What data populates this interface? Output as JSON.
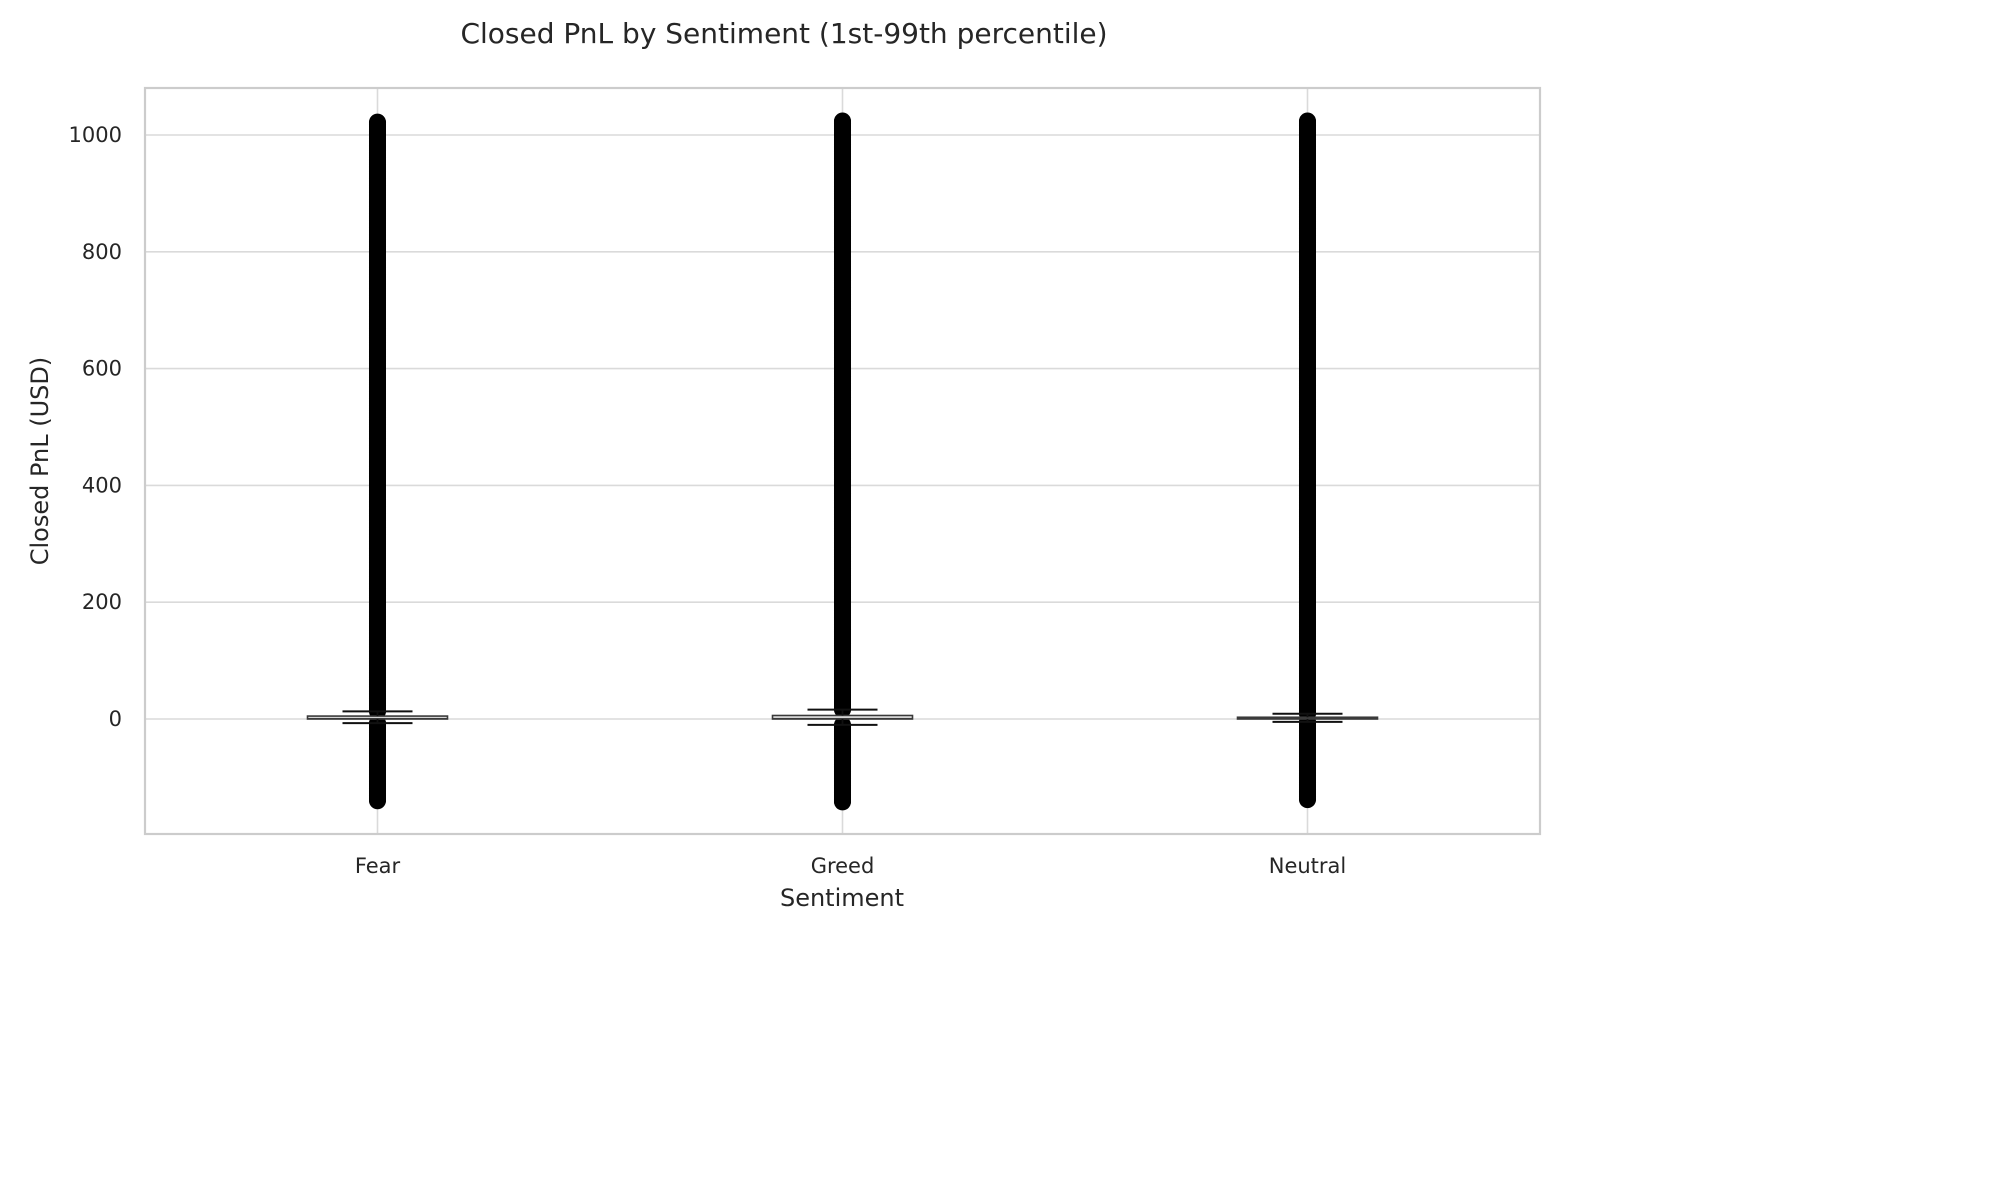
{
  "chart_data": {
    "type": "box",
    "title": "Closed PnL by Sentiment (1st-99th percentile)",
    "xlabel": "Sentiment",
    "ylabel": "Closed PnL (USD)",
    "categories": [
      "Fear",
      "Greed",
      "Neutral"
    ],
    "ylim": [
      -200,
      1080
    ],
    "yticks": [
      0,
      200,
      400,
      600,
      800,
      1000
    ],
    "grid": true,
    "legend": "none",
    "boxes": [
      {
        "category": "Fear",
        "whisker_low": -7,
        "q1": 0,
        "median": 0.5,
        "q3": 5,
        "whisker_high": 13,
        "outliers_low": [
          -140,
          -7
        ],
        "outliers_high": [
          13,
          1022
        ]
      },
      {
        "category": "Greed",
        "whisker_low": -10,
        "q1": 0,
        "median": 0.5,
        "q3": 6,
        "whisker_high": 16,
        "outliers_low": [
          -142,
          -10
        ],
        "outliers_high": [
          16,
          1024
        ]
      },
      {
        "category": "Neutral",
        "whisker_low": -5,
        "q1": 0,
        "median": 0.5,
        "q3": 3,
        "whisker_high": 9,
        "outliers_low": [
          -138,
          -5
        ],
        "outliers_high": [
          9,
          1024
        ]
      }
    ]
  }
}
